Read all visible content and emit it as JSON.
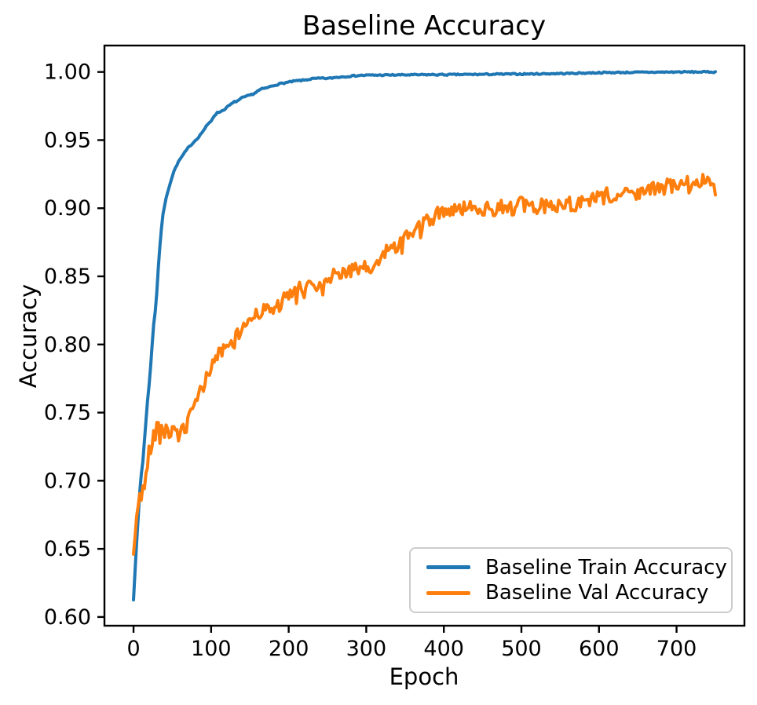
{
  "chart_data": {
    "type": "line",
    "title": "Baseline Accuracy",
    "xlabel": "Epoch",
    "ylabel": "Accuracy",
    "xlim": [
      -37.5,
      787.5
    ],
    "ylim": [
      0.5936,
      1.0194
    ],
    "x_ticks": [
      0,
      100,
      200,
      300,
      400,
      500,
      600,
      700
    ],
    "x_tick_labels": [
      "0",
      "100",
      "200",
      "300",
      "400",
      "500",
      "600",
      "700"
    ],
    "y_ticks": [
      0.6,
      0.65,
      0.7,
      0.75,
      0.8,
      0.85,
      0.9,
      0.95,
      1.0
    ],
    "y_tick_labels": [
      "0.60",
      "0.65",
      "0.70",
      "0.75",
      "0.80",
      "0.85",
      "0.90",
      "0.95",
      "1.00"
    ],
    "grid": false,
    "legend_position": "lower right",
    "series": [
      {
        "name": "Baseline Train Accuracy",
        "color": "#1f77b4",
        "noise_amplitude": 0.0005,
        "spike_chance": 0,
        "spike_amplitude": 0,
        "noise_seed": 7,
        "sample_step": 2,
        "anchors": {
          "x": [
            0,
            3,
            6,
            9,
            12,
            15,
            18,
            21,
            24,
            27,
            29,
            31,
            34,
            37,
            40,
            44,
            48,
            52,
            56,
            60,
            65,
            70,
            75,
            80,
            85,
            90,
            95,
            100,
            104,
            108,
            112,
            116,
            120,
            125,
            130,
            135,
            140,
            145,
            150,
            155,
            160,
            165,
            170,
            175,
            180,
            190,
            200,
            210,
            220,
            230,
            240,
            252,
            260,
            270,
            280,
            290,
            300,
            320,
            340,
            360,
            380,
            400,
            420,
            440,
            460,
            480,
            500,
            520,
            540,
            560,
            580,
            600,
            620,
            640,
            660,
            680,
            700,
            725,
            750
          ],
          "y": [
            0.613,
            0.645,
            0.673,
            0.7,
            0.714,
            0.737,
            0.758,
            0.776,
            0.8,
            0.822,
            0.827,
            0.85,
            0.872,
            0.892,
            0.902,
            0.912,
            0.92,
            0.927,
            0.932,
            0.936,
            0.94,
            0.944,
            0.947,
            0.95,
            0.953,
            0.957,
            0.961,
            0.964,
            0.968,
            0.97,
            0.971,
            0.972,
            0.974,
            0.976,
            0.978,
            0.979,
            0.981,
            0.982,
            0.983,
            0.984,
            0.986,
            0.9875,
            0.988,
            0.989,
            0.99,
            0.9915,
            0.9925,
            0.9935,
            0.994,
            0.995,
            0.9953,
            0.9953,
            0.996,
            0.9965,
            0.997,
            0.9974,
            0.9976,
            0.9977,
            0.9978,
            0.9979,
            0.998,
            0.998,
            0.9981,
            0.9982,
            0.9983,
            0.9984,
            0.9985,
            0.9986,
            0.9988,
            0.9989,
            0.9992,
            0.9995,
            0.9996,
            0.9997,
            0.9998,
            0.9999,
            1.0,
            1.0,
            1.0
          ]
        }
      },
      {
        "name": "Baseline Val Accuracy",
        "color": "#ff7f0e",
        "noise_amplitude": 0.0055,
        "spike_chance": 0.06,
        "spike_amplitude": 0.009,
        "noise_seed": 42,
        "sample_step": 2,
        "anchors": {
          "x": [
            0,
            1,
            3,
            5,
            7,
            9,
            11,
            13,
            15,
            17,
            19,
            21,
            23,
            25,
            28,
            31,
            34,
            37,
            40,
            43,
            46,
            49,
            52,
            55,
            58,
            61,
            64,
            67,
            70,
            73,
            76,
            80,
            84,
            88,
            92,
            96,
            100,
            104,
            108,
            112,
            116,
            120,
            124,
            128,
            132,
            136,
            140,
            145,
            150,
            155,
            160,
            165,
            170,
            175,
            180,
            185,
            190,
            195,
            200,
            205,
            210,
            215,
            220,
            225,
            230,
            235,
            240,
            245,
            250,
            255,
            260,
            265,
            270,
            275,
            280,
            285,
            290,
            295,
            300,
            305,
            310,
            315,
            320,
            325,
            330,
            335,
            340,
            345,
            350,
            355,
            360,
            365,
            370,
            375,
            380,
            385,
            390,
            395,
            400,
            410,
            420,
            430,
            440,
            450,
            460,
            470,
            480,
            490,
            500,
            510,
            520,
            530,
            540,
            550,
            560,
            570,
            580,
            590,
            600,
            610,
            620,
            630,
            640,
            650,
            660,
            670,
            680,
            690,
            700,
            710,
            720,
            730,
            738,
            742,
            746,
            750
          ],
          "y": [
            0.645,
            0.64,
            0.67,
            0.685,
            0.683,
            0.69,
            0.687,
            0.7,
            0.695,
            0.712,
            0.718,
            0.722,
            0.728,
            0.733,
            0.735,
            0.741,
            0.736,
            0.742,
            0.735,
            0.74,
            0.734,
            0.739,
            0.735,
            0.731,
            0.736,
            0.734,
            0.739,
            0.737,
            0.743,
            0.746,
            0.752,
            0.757,
            0.762,
            0.768,
            0.772,
            0.778,
            0.785,
            0.788,
            0.792,
            0.794,
            0.797,
            0.795,
            0.8,
            0.801,
            0.804,
            0.808,
            0.812,
            0.816,
            0.818,
            0.822,
            0.825,
            0.823,
            0.826,
            0.824,
            0.826,
            0.828,
            0.83,
            0.833,
            0.835,
            0.837,
            0.839,
            0.841,
            0.842,
            0.843,
            0.845,
            0.843,
            0.845,
            0.841,
            0.846,
            0.849,
            0.851,
            0.853,
            0.854,
            0.855,
            0.853,
            0.855,
            0.854,
            0.855,
            0.856,
            0.854,
            0.857,
            0.86,
            0.864,
            0.868,
            0.87,
            0.872,
            0.873,
            0.875,
            0.878,
            0.88,
            0.882,
            0.885,
            0.886,
            0.888,
            0.89,
            0.892,
            0.895,
            0.897,
            0.898,
            0.9,
            0.901,
            0.898,
            0.902,
            0.9,
            0.899,
            0.901,
            0.902,
            0.9,
            0.903,
            0.899,
            0.901,
            0.902,
            0.901,
            0.903,
            0.904,
            0.903,
            0.905,
            0.906,
            0.907,
            0.907,
            0.908,
            0.91,
            0.911,
            0.912,
            0.913,
            0.914,
            0.913,
            0.917,
            0.915,
            0.917,
            0.919,
            0.918,
            0.924,
            0.92,
            0.921,
            0.915
          ]
        }
      }
    ]
  }
}
